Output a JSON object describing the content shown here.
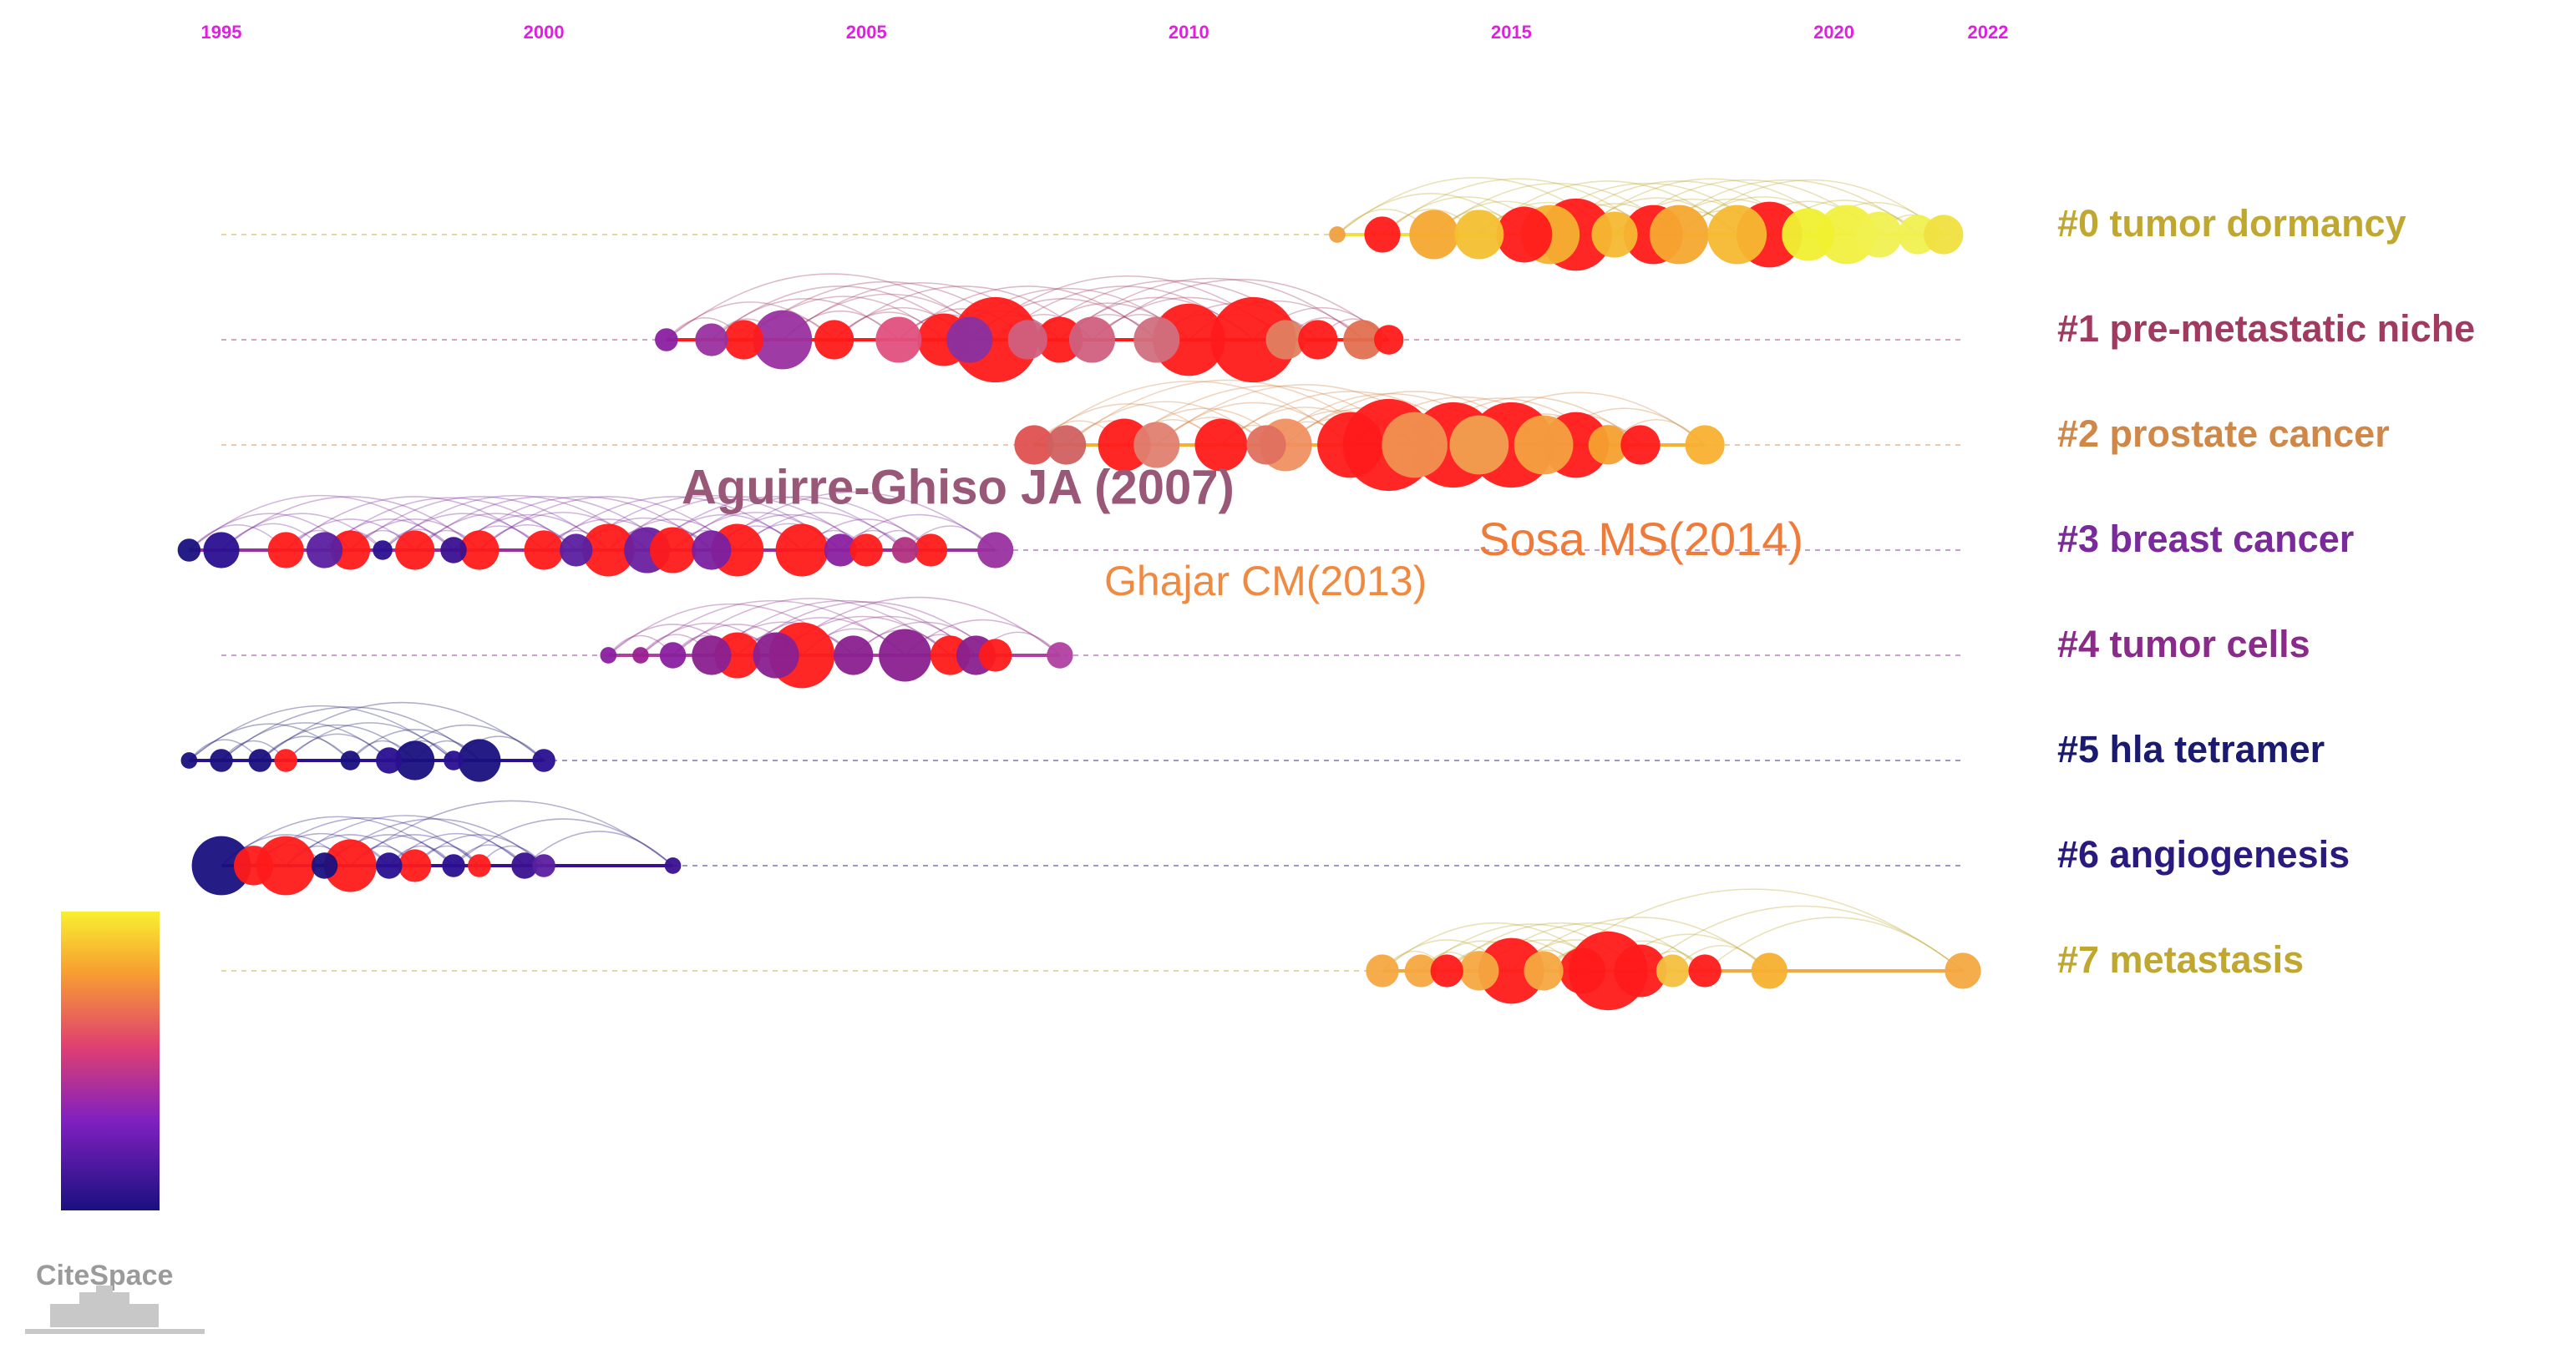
{
  "chart_data": {
    "type": "timeline",
    "xlim": [
      1995,
      2022
    ],
    "xticks": [
      1995,
      2000,
      2005,
      2010,
      2015,
      2020,
      2022
    ],
    "tick_color": "#e020e0",
    "clusters": [
      {
        "label": "#0 tumor dormancy",
        "color": "#c0a830",
        "nodes": [
          {
            "year": 2012.3,
            "size": 5,
            "color": "#f0a040"
          },
          {
            "year": 2013,
            "size": 11,
            "color": "#ff1a1a"
          },
          {
            "year": 2013.8,
            "size": 15,
            "color": "#f6a830"
          },
          {
            "year": 2014.5,
            "size": 15,
            "color": "#f4c030"
          },
          {
            "year": 2015.2,
            "size": 17,
            "color": "#ff1a1a"
          },
          {
            "year": 2015.6,
            "size": 18,
            "color": "#f6b030"
          },
          {
            "year": 2016,
            "size": 22,
            "color": "#ff1a1a"
          },
          {
            "year": 2016.6,
            "size": 14,
            "color": "#f6b830"
          },
          {
            "year": 2017.2,
            "size": 18,
            "color": "#ff1a1a"
          },
          {
            "year": 2017.6,
            "size": 18,
            "color": "#f6a830"
          },
          {
            "year": 2018.5,
            "size": 18,
            "color": "#f6b830"
          },
          {
            "year": 2019,
            "size": 20,
            "color": "#ff1a1a"
          },
          {
            "year": 2019.6,
            "size": 16,
            "color": "#f0f030"
          },
          {
            "year": 2020.2,
            "size": 18,
            "color": "#f0f040"
          },
          {
            "year": 2020.7,
            "size": 14,
            "color": "#f0f050"
          },
          {
            "year": 2021.3,
            "size": 12,
            "color": "#f0f050"
          },
          {
            "year": 2021.7,
            "size": 12,
            "color": "#f0e040"
          }
        ]
      },
      {
        "label": "#1 pre-metastatic niche",
        "color": "#a03a60",
        "nodes": [
          {
            "year": 2001.9,
            "size": 7,
            "color": "#8a20a0"
          },
          {
            "year": 2002.6,
            "size": 10,
            "color": "#9a30a0"
          },
          {
            "year": 2003.1,
            "size": 12,
            "color": "#ff1a1a"
          },
          {
            "year": 2003.7,
            "size": 18,
            "color": "#9a30a0"
          },
          {
            "year": 2004.5,
            "size": 12,
            "color": "#ff1a1a"
          },
          {
            "year": 2005.5,
            "size": 14,
            "color": "#e05080"
          },
          {
            "year": 2006.2,
            "size": 16,
            "color": "#ff1a1a"
          },
          {
            "year": 2007,
            "size": 26,
            "color": "#ff1a1a"
          },
          {
            "year": 2006.6,
            "size": 14,
            "color": "#8a30a0"
          },
          {
            "year": 2007.5,
            "size": 12,
            "color": "#d06080"
          },
          {
            "year": 2008,
            "size": 14,
            "color": "#ff1a1a"
          },
          {
            "year": 2008.5,
            "size": 14,
            "color": "#d06080"
          },
          {
            "year": 2009.5,
            "size": 14,
            "color": "#d07080"
          },
          {
            "year": 2010,
            "size": 22,
            "color": "#ff1a1a"
          },
          {
            "year": 2011,
            "size": 26,
            "color": "#ff1a1a"
          },
          {
            "year": 2011.5,
            "size": 12,
            "color": "#e08060"
          },
          {
            "year": 2012,
            "size": 12,
            "color": "#ff1a1a"
          },
          {
            "year": 2012.7,
            "size": 12,
            "color": "#e07050"
          },
          {
            "year": 2013.1,
            "size": 9,
            "color": "#ff1a1a"
          }
        ]
      },
      {
        "label": "#2 prostate cancer",
        "color": "#d08848",
        "nodes": [
          {
            "year": 2007.6,
            "size": 12,
            "color": "#e05050"
          },
          {
            "year": 2008.1,
            "size": 12,
            "color": "#d06060"
          },
          {
            "year": 2009,
            "size": 16,
            "color": "#ff1a1a"
          },
          {
            "year": 2009.5,
            "size": 14,
            "color": "#e08070"
          },
          {
            "year": 2010.5,
            "size": 16,
            "color": "#ff1a1a"
          },
          {
            "year": 2011.2,
            "size": 12,
            "color": "#e07060"
          },
          {
            "year": 2011.5,
            "size": 16,
            "color": "#f09060"
          },
          {
            "year": 2012.5,
            "size": 20,
            "color": "#ff1a1a"
          },
          {
            "year": 2013.1,
            "size": 28,
            "color": "#ff1a1a"
          },
          {
            "year": 2013.5,
            "size": 20,
            "color": "#f09050"
          },
          {
            "year": 2014.1,
            "size": 26,
            "color": "#ff1a1a"
          },
          {
            "year": 2014.5,
            "size": 18,
            "color": "#f0a050"
          },
          {
            "year": 2015,
            "size": 26,
            "color": "#ff1a1a"
          },
          {
            "year": 2015.5,
            "size": 18,
            "color": "#f4a040"
          },
          {
            "year": 2016,
            "size": 20,
            "color": "#ff1a1a"
          },
          {
            "year": 2016.5,
            "size": 12,
            "color": "#f6a030"
          },
          {
            "year": 2017,
            "size": 12,
            "color": "#ff1a1a"
          },
          {
            "year": 2018,
            "size": 12,
            "color": "#f8b030"
          }
        ]
      },
      {
        "label": "#3 breast cancer",
        "color": "#7a2a9a",
        "nodes": [
          {
            "year": 1994.5,
            "size": 7,
            "color": "#1a1080"
          },
          {
            "year": 1995,
            "size": 11,
            "color": "#2a1090"
          },
          {
            "year": 1996,
            "size": 11,
            "color": "#ff1a1a"
          },
          {
            "year": 1996.6,
            "size": 11,
            "color": "#5a20a0"
          },
          {
            "year": 1997,
            "size": 12,
            "color": "#ff1a1a"
          },
          {
            "year": 1997.5,
            "size": 6,
            "color": "#2a1090"
          },
          {
            "year": 1998,
            "size": 12,
            "color": "#ff1a1a"
          },
          {
            "year": 1998.6,
            "size": 8,
            "color": "#3a1090"
          },
          {
            "year": 1999,
            "size": 12,
            "color": "#ff1a1a"
          },
          {
            "year": 2000,
            "size": 12,
            "color": "#ff1a1a"
          },
          {
            "year": 2000.5,
            "size": 10,
            "color": "#5a20a0"
          },
          {
            "year": 2001,
            "size": 16,
            "color": "#ff1a1a"
          },
          {
            "year": 2001.6,
            "size": 14,
            "color": "#6a20a0"
          },
          {
            "year": 2002,
            "size": 14,
            "color": "#ff1a1a"
          },
          {
            "year": 2002.6,
            "size": 12,
            "color": "#7a20a0"
          },
          {
            "year": 2003,
            "size": 16,
            "color": "#ff1a1a"
          },
          {
            "year": 2004,
            "size": 16,
            "color": "#ff1a1a"
          },
          {
            "year": 2004.6,
            "size": 10,
            "color": "#8a20a0"
          },
          {
            "year": 2005,
            "size": 10,
            "color": "#ff1a1a"
          },
          {
            "year": 2005.6,
            "size": 8,
            "color": "#b03080"
          },
          {
            "year": 2006,
            "size": 10,
            "color": "#ff1a1a"
          },
          {
            "year": 2007,
            "size": 11,
            "color": "#9a30a0"
          }
        ]
      },
      {
        "label": "#4 tumor cells",
        "color": "#8a2a8a",
        "nodes": [
          {
            "year": 2001,
            "size": 5,
            "color": "#8a20a0"
          },
          {
            "year": 2001.5,
            "size": 5,
            "color": "#9a2090"
          },
          {
            "year": 2002,
            "size": 8,
            "color": "#8a20a0"
          },
          {
            "year": 2002.6,
            "size": 12,
            "color": "#8a2090"
          },
          {
            "year": 2003,
            "size": 14,
            "color": "#ff1a1a"
          },
          {
            "year": 2003.6,
            "size": 14,
            "color": "#8a2090"
          },
          {
            "year": 2004,
            "size": 20,
            "color": "#ff1a1a"
          },
          {
            "year": 2004.8,
            "size": 12,
            "color": "#8a2090"
          },
          {
            "year": 2005.6,
            "size": 16,
            "color": "#8a2090"
          },
          {
            "year": 2006.3,
            "size": 12,
            "color": "#ff1a1a"
          },
          {
            "year": 2006.7,
            "size": 12,
            "color": "#8a2090"
          },
          {
            "year": 2007,
            "size": 10,
            "color": "#ff1a1a"
          },
          {
            "year": 2008,
            "size": 8,
            "color": "#b040a0"
          }
        ]
      },
      {
        "label": "#5 hla tetramer",
        "color": "#1a1a70",
        "nodes": [
          {
            "year": 1994.5,
            "size": 5,
            "color": "#1a1080"
          },
          {
            "year": 1995,
            "size": 7,
            "color": "#1a1080"
          },
          {
            "year": 1995.6,
            "size": 7,
            "color": "#1a1080"
          },
          {
            "year": 1996,
            "size": 7,
            "color": "#ff1a1a"
          },
          {
            "year": 1997,
            "size": 6,
            "color": "#1a1080"
          },
          {
            "year": 1997.6,
            "size": 8,
            "color": "#2a1090"
          },
          {
            "year": 1998,
            "size": 12,
            "color": "#1a1080"
          },
          {
            "year": 1998.6,
            "size": 6,
            "color": "#2a1090"
          },
          {
            "year": 1999,
            "size": 13,
            "color": "#1a1080"
          },
          {
            "year": 2000,
            "size": 7,
            "color": "#2a1090"
          }
        ]
      },
      {
        "label": "#6 angiogenesis",
        "color": "#2a1a80",
        "nodes": [
          {
            "year": 1995,
            "size": 18,
            "color": "#1a1080"
          },
          {
            "year": 1995.5,
            "size": 12,
            "color": "#ff1a1a"
          },
          {
            "year": 1996,
            "size": 18,
            "color": "#ff1a1a"
          },
          {
            "year": 1996.6,
            "size": 8,
            "color": "#1a1080"
          },
          {
            "year": 1997,
            "size": 16,
            "color": "#ff1a1a"
          },
          {
            "year": 1997.6,
            "size": 8,
            "color": "#2a1090"
          },
          {
            "year": 1998,
            "size": 10,
            "color": "#ff1a1a"
          },
          {
            "year": 1998.6,
            "size": 7,
            "color": "#2a1090"
          },
          {
            "year": 1999,
            "size": 7,
            "color": "#ff1a1a"
          },
          {
            "year": 1999.7,
            "size": 8,
            "color": "#3a1090"
          },
          {
            "year": 2000,
            "size": 7,
            "color": "#5a20a0"
          },
          {
            "year": 2002,
            "size": 5,
            "color": "#3a1090"
          }
        ]
      },
      {
        "label": "#7 metastasis",
        "color": "#c0a830",
        "nodes": [
          {
            "year": 2013,
            "size": 10,
            "color": "#f6a840"
          },
          {
            "year": 2013.6,
            "size": 10,
            "color": "#f6a840"
          },
          {
            "year": 2014,
            "size": 10,
            "color": "#ff1a1a"
          },
          {
            "year": 2014.5,
            "size": 12,
            "color": "#f6a840"
          },
          {
            "year": 2015,
            "size": 20,
            "color": "#ff1a1a"
          },
          {
            "year": 2015.5,
            "size": 12,
            "color": "#f6a840"
          },
          {
            "year": 2016.1,
            "size": 14,
            "color": "#ff1a1a"
          },
          {
            "year": 2016.5,
            "size": 24,
            "color": "#ff1a1a"
          },
          {
            "year": 2017,
            "size": 16,
            "color": "#ff1a1a"
          },
          {
            "year": 2017.5,
            "size": 10,
            "color": "#f4c040"
          },
          {
            "year": 2018,
            "size": 10,
            "color": "#ff1a1a"
          },
          {
            "year": 2019,
            "size": 11,
            "color": "#f6b030"
          },
          {
            "year": 2022,
            "size": 11,
            "color": "#f4a840"
          }
        ]
      }
    ],
    "annotations": [
      "Aguirre-Ghiso JA (2007)",
      "Ghajar CM(2013)",
      "Sosa MS(2014)"
    ],
    "logo": "CiteSpace"
  }
}
